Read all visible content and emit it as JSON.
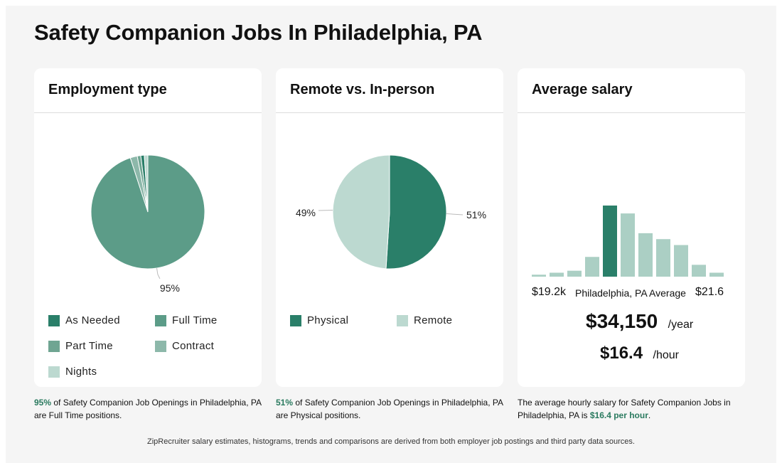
{
  "page": {
    "title": "Safety Companion Jobs In Philadelphia, PA"
  },
  "colors": {
    "dark_green": "#2a7f69",
    "mid_green": "#5c9c88",
    "light_green": "#abcfc4",
    "pale_green": "#bcd9d0",
    "highlight_text": "#2a7a5f"
  },
  "employment": {
    "title": "Employment type",
    "pie_label": "95%",
    "legend": [
      {
        "label": "As Needed",
        "color": "#2a7f69"
      },
      {
        "label": "Full Time",
        "color": "#5c9c88"
      },
      {
        "label": "Part Time",
        "color": "#6fa592"
      },
      {
        "label": "Contract",
        "color": "#8db8aa"
      },
      {
        "label": "Nights",
        "color": "#bcd9d0"
      }
    ],
    "caption_highlight": "95%",
    "caption_text": " of Safety Companion Job Openings in Philadelphia, PA are Full Time positions."
  },
  "remote": {
    "title": "Remote vs. In-person",
    "label_physical": "51%",
    "label_remote": "49%",
    "legend": [
      {
        "label": "Physical",
        "color": "#2a7f69"
      },
      {
        "label": "Remote",
        "color": "#bcd9d0"
      }
    ],
    "caption_highlight": "51%",
    "caption_text": " of Safety Companion Job Openings in Philadelphia, PA are Physical positions."
  },
  "salary": {
    "title": "Average salary",
    "min_label": "$19.2k",
    "center_label": "Philadelphia, PA Average",
    "max_label": "$21.6",
    "yearly": "$34,150",
    "yearly_unit": "/year",
    "hourly": "$16.4",
    "hourly_unit": "/hour",
    "caption_text": "The average hourly salary for Safety Companion Jobs in Philadelphia, PA is ",
    "caption_highlight": "$16.4 per hour",
    "caption_end": "."
  },
  "footer": {
    "text": "ZipRecruiter salary estimates, histograms, trends and comparisons are derived from both employer job postings and third party data sources."
  },
  "chart_data": [
    {
      "type": "pie",
      "title": "Employment type",
      "categories": [
        "Full Time",
        "Part Time",
        "Contract",
        "As Needed",
        "Nights"
      ],
      "values": [
        95,
        2,
        1,
        1,
        1
      ],
      "colors": [
        "#5c9c88",
        "#8db8aa",
        "#6fa592",
        "#2a7f69",
        "#bcd9d0"
      ]
    },
    {
      "type": "pie",
      "title": "Remote vs. In-person",
      "categories": [
        "Physical",
        "Remote"
      ],
      "values": [
        51,
        49
      ],
      "colors": [
        "#2a7f69",
        "#bcd9d0"
      ]
    },
    {
      "type": "bar",
      "title": "Average salary",
      "categories": [
        "1",
        "2",
        "3",
        "4",
        "5",
        "6",
        "7",
        "8",
        "9",
        "10",
        "11"
      ],
      "values": [
        1,
        2,
        3,
        10,
        36,
        32,
        22,
        19,
        16,
        6,
        2
      ],
      "highlight_index": 4,
      "colors": {
        "normal": "#abcfc4",
        "highlight": "#2a7f69"
      }
    }
  ]
}
